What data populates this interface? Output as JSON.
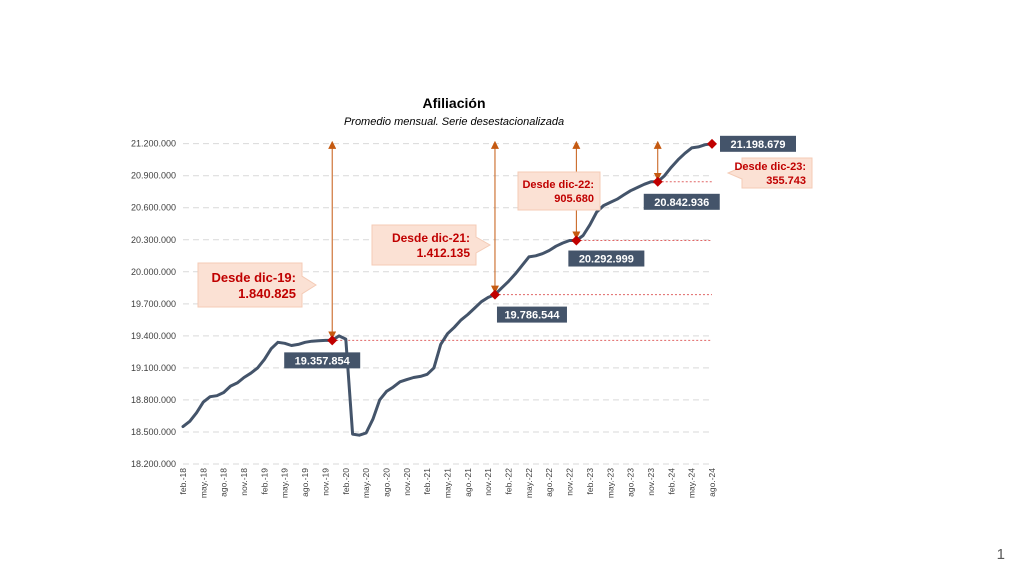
{
  "slide": {
    "page_number": "1"
  },
  "chart_data": {
    "type": "line",
    "title": "Afiliación",
    "subtitle": "Promedio mensual. Serie desestacionalizada",
    "xlabel": "",
    "ylabel": "",
    "ylim": [
      18200000,
      21300000
    ],
    "yticks": [
      18200000,
      18500000,
      18800000,
      19100000,
      19400000,
      19700000,
      20000000,
      20300000,
      20600000,
      20900000,
      21200000
    ],
    "ytick_labels": [
      "18.200.000",
      "18.500.000",
      "18.800.000",
      "19.100.000",
      "19.400.000",
      "19.700.000",
      "20.000.000",
      "20.300.000",
      "20.600.000",
      "20.900.000",
      "21.200.000"
    ],
    "xtick_labels": [
      "feb.-18",
      "may.-18",
      "ago.-18",
      "nov.-18",
      "feb.-19",
      "may.-19",
      "ago.-19",
      "nov.-19",
      "feb.-20",
      "may.-20",
      "ago.-20",
      "nov.-20",
      "feb.-21",
      "may.-21",
      "ago.-21",
      "nov.-21",
      "feb.-22",
      "may.-22",
      "ago.-22",
      "nov.-22",
      "feb.-23",
      "may.-23",
      "ago.-23",
      "nov.-23",
      "feb.-24",
      "may.-24",
      "ago.-24"
    ],
    "grid": true,
    "line_color": "#44546a",
    "marker_color": "#c00000",
    "series": [
      {
        "x": [
          "feb.-18",
          "mar.-18",
          "abr.-18",
          "may.-18",
          "jun.-18",
          "jul.-18",
          "ago.-18",
          "sep.-18",
          "oct.-18",
          "nov.-18",
          "dic.-18",
          "ene.-19",
          "feb.-19",
          "mar.-19",
          "abr.-19",
          "may.-19",
          "jun.-19",
          "jul.-19",
          "ago.-19",
          "sep.-19",
          "oct.-19",
          "nov.-19",
          "dic.-19",
          "ene.-20",
          "feb.-20",
          "mar.-20",
          "abr.-20",
          "may.-20",
          "jun.-20",
          "jul.-20",
          "ago.-20",
          "sep.-20",
          "oct.-20",
          "nov.-20",
          "dic.-20",
          "ene.-21",
          "feb.-21",
          "mar.-21",
          "abr.-21",
          "may.-21",
          "jun.-21",
          "jul.-21",
          "ago.-21",
          "sep.-21",
          "oct.-21",
          "nov.-21",
          "dic.-21",
          "ene.-22",
          "feb.-22",
          "mar.-22",
          "abr.-22",
          "may.-22",
          "jun.-22",
          "jul.-22",
          "ago.-22",
          "sep.-22",
          "oct.-22",
          "nov.-22",
          "dic.-22",
          "ene.-23",
          "feb.-23",
          "mar.-23",
          "abr.-23",
          "may.-23",
          "jun.-23",
          "jul.-23",
          "ago.-23",
          "sep.-23",
          "oct.-23",
          "nov.-23",
          "dic.-23",
          "ene.-24",
          "feb.-24",
          "mar.-24",
          "abr.-24",
          "may.-24",
          "jun.-24",
          "jul.-24",
          "ago.-24"
        ],
        "values": [
          18550000,
          18600000,
          18680000,
          18780000,
          18830000,
          18840000,
          18870000,
          18930000,
          18960000,
          19010000,
          19050000,
          19100000,
          19180000,
          19280000,
          19340000,
          19330000,
          19310000,
          19320000,
          19340000,
          19350000,
          19355000,
          19357854,
          19357854,
          19400000,
          19370000,
          18480000,
          18470000,
          18490000,
          18620000,
          18800000,
          18880000,
          18920000,
          18970000,
          18990000,
          19010000,
          19020000,
          19040000,
          19100000,
          19320000,
          19420000,
          19480000,
          19550000,
          19600000,
          19660000,
          19720000,
          19760000,
          19786544,
          19850000,
          19910000,
          19980000,
          20060000,
          20140000,
          20150000,
          20170000,
          20200000,
          20240000,
          20270000,
          20292999,
          20292999,
          20340000,
          20440000,
          20560000,
          20620000,
          20650000,
          20680000,
          20720000,
          20760000,
          20790000,
          20820000,
          20842936,
          20842936,
          20900000,
          20980000,
          21050000,
          21110000,
          21160000,
          21170000,
          21190000,
          21198679
        ]
      }
    ],
    "highlights": [
      {
        "x": "dic.-19",
        "value": 19357854,
        "label": "19.357.854"
      },
      {
        "x": "dic.-21",
        "value": 19786544,
        "label": "19.786.544"
      },
      {
        "x": "dic.-22",
        "value": 20292999,
        "label": "20.292.999"
      },
      {
        "x": "dic.-23",
        "value": 20842936,
        "label": "20.842.936"
      },
      {
        "x": "ago.-24",
        "value": 21198679,
        "label": "21.198.679"
      }
    ],
    "annotations": [
      {
        "from": "dic.-19",
        "title": "Desde dic-19:",
        "value": "1.840.825"
      },
      {
        "from": "dic.-21",
        "title": "Desde dic-21:",
        "value": "1.412.135"
      },
      {
        "from": "dic.-22",
        "title": "Desde dic-22:",
        "value": "905.680"
      },
      {
        "from": "dic.-23",
        "title": "Desde dic-23:",
        "value": "355.743"
      }
    ]
  }
}
